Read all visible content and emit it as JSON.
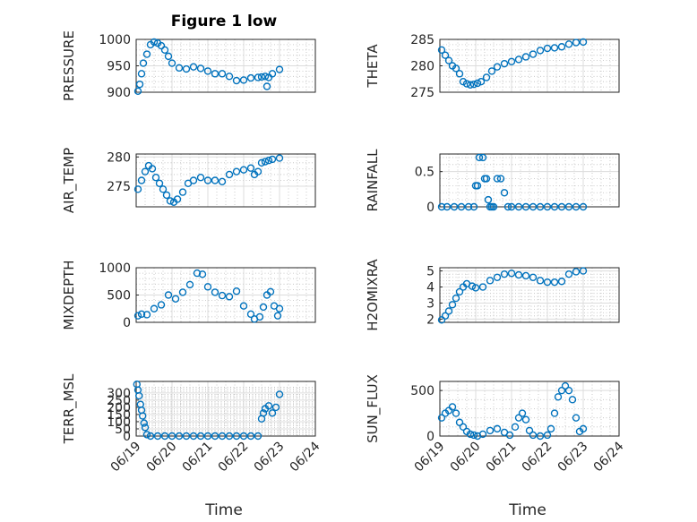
{
  "figure": {
    "title": "Figure 1 low"
  },
  "chart_data": [
    {
      "type": "scatter",
      "ylabel": "PRESSURE",
      "xlabel": "",
      "title": "Figure 1 low",
      "ylim": [
        900,
        1000
      ],
      "yticks": [
        "900",
        "950",
        "1000"
      ],
      "xticks": [
        "06/19",
        "06/20",
        "06/21",
        "06/22",
        "06/23",
        "06/24"
      ],
      "xlim_days": [
        0,
        5
      ],
      "color": "#0072BD",
      "series": [
        {
          "x": [
            0.05,
            0.1,
            0.15,
            0.2,
            0.3,
            0.4,
            0.5,
            0.6,
            0.7,
            0.8,
            0.9,
            1.0,
            1.2,
            1.4,
            1.6,
            1.8,
            2.0,
            2.2,
            2.4,
            2.6,
            2.8,
            3.0,
            3.2,
            3.4,
            3.5,
            3.6,
            3.65,
            3.7,
            3.8,
            4.0
          ],
          "y": [
            902,
            915,
            935,
            955,
            972,
            990,
            995,
            993,
            988,
            980,
            968,
            955,
            946,
            944,
            948,
            945,
            940,
            935,
            935,
            930,
            922,
            923,
            927,
            928,
            929,
            930,
            911,
            928,
            935,
            943
          ]
        }
      ]
    },
    {
      "type": "scatter",
      "ylabel": "THETA",
      "xlabel": "",
      "ylim": [
        275,
        285
      ],
      "yticks": [
        "275",
        "280",
        "285"
      ],
      "xticks": [
        "06/19",
        "06/20",
        "06/21",
        "06/22",
        "06/23",
        "06/24"
      ],
      "xlim_days": [
        0,
        5
      ],
      "color": "#0072BD",
      "series": [
        {
          "x": [
            0.05,
            0.15,
            0.25,
            0.35,
            0.45,
            0.55,
            0.65,
            0.75,
            0.85,
            0.95,
            1.05,
            1.15,
            1.3,
            1.45,
            1.6,
            1.8,
            2.0,
            2.2,
            2.4,
            2.6,
            2.8,
            3.0,
            3.2,
            3.4,
            3.6,
            3.8,
            4.0
          ],
          "y": [
            283,
            282,
            281,
            280,
            279.5,
            278.5,
            277,
            276.6,
            276.4,
            276.5,
            276.7,
            277,
            277.8,
            279,
            279.8,
            280.4,
            280.8,
            281.2,
            281.7,
            282.2,
            282.9,
            283.3,
            283.4,
            283.6,
            284.1,
            284.4,
            284.5
          ]
        }
      ]
    },
    {
      "type": "scatter",
      "ylabel": "AIR_TEMP",
      "xlabel": "",
      "ylim": [
        271.5,
        280.5
      ],
      "yticks": [
        "275",
        "280"
      ],
      "xticks": [
        "06/19",
        "06/20",
        "06/21",
        "06/22",
        "06/23",
        "06/24"
      ],
      "xlim_days": [
        0,
        5
      ],
      "color": "#0072BD",
      "series": [
        {
          "x": [
            0.05,
            0.15,
            0.25,
            0.35,
            0.45,
            0.55,
            0.65,
            0.75,
            0.85,
            0.95,
            1.05,
            1.15,
            1.3,
            1.45,
            1.6,
            1.8,
            2.0,
            2.2,
            2.4,
            2.6,
            2.8,
            3.0,
            3.2,
            3.3,
            3.4,
            3.5,
            3.6,
            3.7,
            3.8,
            4.0
          ],
          "y": [
            274.5,
            276,
            277.5,
            278.5,
            278,
            276.5,
            275.5,
            274.5,
            273.5,
            272.5,
            272.3,
            272.8,
            274,
            275.5,
            276,
            276.5,
            276,
            276,
            275.8,
            277,
            277.5,
            277.8,
            278.1,
            277,
            277.5,
            279,
            279.2,
            279.4,
            279.6,
            279.8
          ]
        }
      ]
    },
    {
      "type": "scatter",
      "ylabel": "RAINFALL",
      "xlabel": "",
      "ylim": [
        0,
        0.75
      ],
      "yticks": [
        "0",
        "0.5"
      ],
      "xticks": [
        "06/19",
        "06/20",
        "06/21",
        "06/22",
        "06/23",
        "06/24"
      ],
      "xlim_days": [
        0,
        5
      ],
      "color": "#0072BD",
      "series": [
        {
          "x": [
            0.05,
            0.2,
            0.4,
            0.6,
            0.8,
            0.95,
            1.0,
            1.05,
            1.1,
            1.2,
            1.25,
            1.3,
            1.35,
            1.4,
            1.45,
            1.5,
            1.6,
            1.7,
            1.8,
            1.9,
            2.0,
            2.2,
            2.4,
            2.6,
            2.8,
            3.0,
            3.2,
            3.4,
            3.6,
            3.8,
            4.0
          ],
          "y": [
            0,
            0,
            0,
            0,
            0,
            0,
            0.3,
            0.3,
            0.7,
            0.7,
            0.4,
            0.4,
            0.1,
            0,
            0,
            0,
            0.4,
            0.4,
            0.2,
            0,
            0,
            0,
            0,
            0,
            0,
            0,
            0,
            0,
            0,
            0,
            0
          ]
        }
      ]
    },
    {
      "type": "scatter",
      "ylabel": "MIXDEPTH",
      "xlabel": "",
      "ylim": [
        0,
        1000
      ],
      "yticks": [
        "0",
        "500",
        "1000"
      ],
      "xticks": [
        "06/19",
        "06/20",
        "06/21",
        "06/22",
        "06/23",
        "06/24"
      ],
      "xlim_days": [
        0,
        5
      ],
      "color": "#0072BD",
      "series": [
        {
          "x": [
            0.05,
            0.15,
            0.3,
            0.5,
            0.7,
            0.9,
            1.1,
            1.3,
            1.5,
            1.7,
            1.85,
            2.0,
            2.2,
            2.4,
            2.6,
            2.8,
            3.0,
            3.2,
            3.3,
            3.45,
            3.55,
            3.65,
            3.75,
            3.85,
            3.95,
            4.0
          ],
          "y": [
            120,
            150,
            140,
            250,
            320,
            500,
            430,
            550,
            690,
            900,
            880,
            650,
            550,
            490,
            470,
            570,
            300,
            150,
            60,
            100,
            280,
            500,
            560,
            300,
            120,
            250
          ]
        }
      ]
    },
    {
      "type": "scatter",
      "ylabel": "H2OMIXRA",
      "xlabel": "",
      "ylim": [
        1.8,
        5.2
      ],
      "yticks": [
        "2",
        "3",
        "4",
        "5"
      ],
      "xticks": [
        "06/19",
        "06/20",
        "06/21",
        "06/22",
        "06/23",
        "06/24"
      ],
      "xlim_days": [
        0,
        5
      ],
      "color": "#0072BD",
      "series": [
        {
          "x": [
            0.05,
            0.15,
            0.25,
            0.35,
            0.45,
            0.55,
            0.65,
            0.75,
            0.9,
            1.0,
            1.2,
            1.4,
            1.6,
            1.8,
            2.0,
            2.2,
            2.4,
            2.6,
            2.8,
            3.0,
            3.2,
            3.4,
            3.6,
            3.8,
            4.0
          ],
          "y": [
            1.95,
            2.2,
            2.5,
            2.9,
            3.3,
            3.7,
            4.0,
            4.2,
            4.05,
            3.95,
            4.0,
            4.4,
            4.6,
            4.8,
            4.85,
            4.75,
            4.7,
            4.6,
            4.4,
            4.3,
            4.3,
            4.35,
            4.8,
            4.95,
            5.0
          ]
        }
      ]
    },
    {
      "type": "scatter",
      "ylabel": "TERR_MSL",
      "xlabel": "Time",
      "ylim": [
        0,
        380
      ],
      "yticks": [
        "0",
        "50",
        "100",
        "150",
        "200",
        "250",
        "300"
      ],
      "xticks": [
        "06/19",
        "06/20",
        "06/21",
        "06/22",
        "06/23",
        "06/24"
      ],
      "xlim_days": [
        0,
        5
      ],
      "color": "#0072BD",
      "series": [
        {
          "x": [
            0.02,
            0.05,
            0.08,
            0.12,
            0.15,
            0.18,
            0.22,
            0.25,
            0.3,
            0.4,
            0.6,
            0.8,
            1.0,
            1.2,
            1.4,
            1.6,
            1.8,
            2.0,
            2.2,
            2.4,
            2.6,
            2.8,
            3.0,
            3.2,
            3.4,
            3.5,
            3.55,
            3.6,
            3.7,
            3.8,
            3.9,
            4.0
          ],
          "y": [
            360,
            320,
            280,
            220,
            180,
            140,
            90,
            60,
            10,
            0,
            0,
            0,
            0,
            0,
            0,
            0,
            0,
            0,
            0,
            0,
            0,
            0,
            0,
            0,
            0,
            120,
            160,
            190,
            210,
            160,
            200,
            290
          ]
        }
      ]
    },
    {
      "type": "scatter",
      "ylabel": "SUN_FLUX",
      "xlabel": "Time",
      "ylim": [
        0,
        600
      ],
      "yticks": [
        "0",
        "500"
      ],
      "xticks": [
        "06/19",
        "06/20",
        "06/21",
        "06/22",
        "06/23",
        "06/24"
      ],
      "xlim_days": [
        0,
        5
      ],
      "color": "#0072BD",
      "series": [
        {
          "x": [
            0.05,
            0.15,
            0.25,
            0.35,
            0.45,
            0.55,
            0.65,
            0.75,
            0.85,
            0.95,
            1.05,
            1.2,
            1.4,
            1.6,
            1.8,
            1.95,
            2.1,
            2.2,
            2.3,
            2.4,
            2.5,
            2.6,
            2.8,
            3.0,
            3.1,
            3.2,
            3.3,
            3.4,
            3.5,
            3.6,
            3.7,
            3.8,
            3.9,
            4.0
          ],
          "y": [
            200,
            250,
            280,
            320,
            250,
            150,
            100,
            50,
            20,
            10,
            0,
            20,
            60,
            80,
            40,
            10,
            100,
            200,
            250,
            180,
            60,
            10,
            0,
            10,
            80,
            250,
            430,
            500,
            550,
            500,
            400,
            200,
            50,
            80
          ]
        }
      ]
    }
  ]
}
